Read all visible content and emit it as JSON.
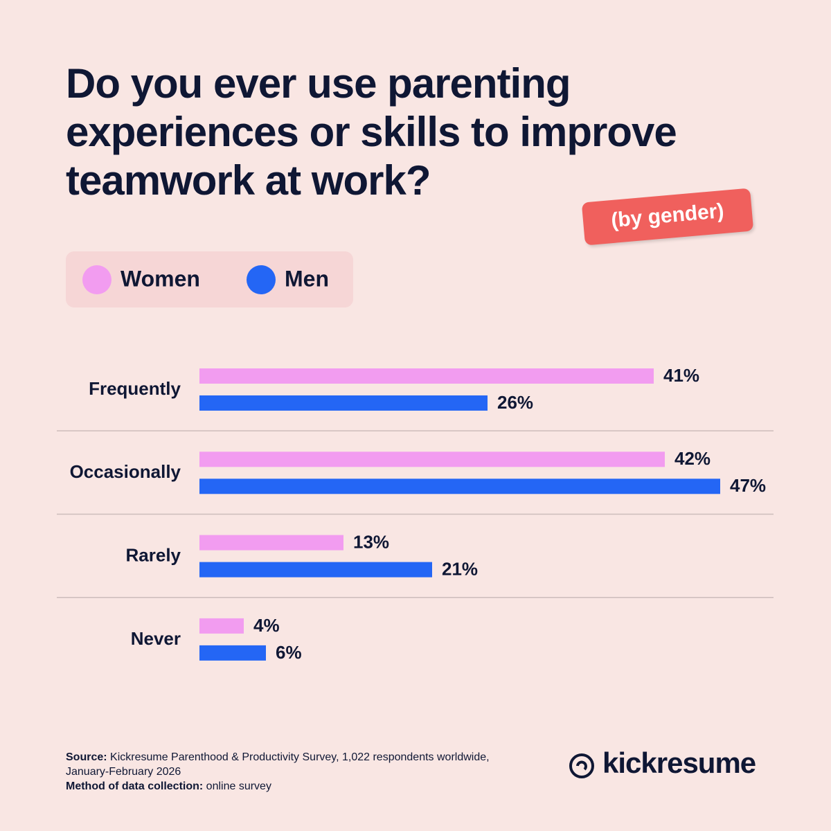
{
  "chart_data": {
    "type": "hbar",
    "title": "Do you ever use parenting experiences or skills to improve teamwork at work?",
    "subtitle": "(by gender)",
    "categories": [
      "Frequently",
      "Occasionally",
      "Rarely",
      "Never"
    ],
    "series": [
      {
        "name": "Women",
        "color": "#f29cf0",
        "values": [
          41,
          42,
          13,
          4
        ],
        "value_labels": [
          "41%",
          "42%",
          "13%",
          "4%"
        ]
      },
      {
        "name": "Men",
        "color": "#2466f5",
        "values": [
          26,
          47,
          21,
          6
        ],
        "value_labels": [
          "26%",
          "47%",
          "21%",
          "6%"
        ]
      }
    ]
  },
  "footer": {
    "source_label": "Source:",
    "source_text": "Kickresume Parenthood & Productivity Survey, 1,022 respondents worldwide, January-February 2026",
    "method_label": "Method of data collection:",
    "method_text": "online survey",
    "logo": "kickresume"
  }
}
